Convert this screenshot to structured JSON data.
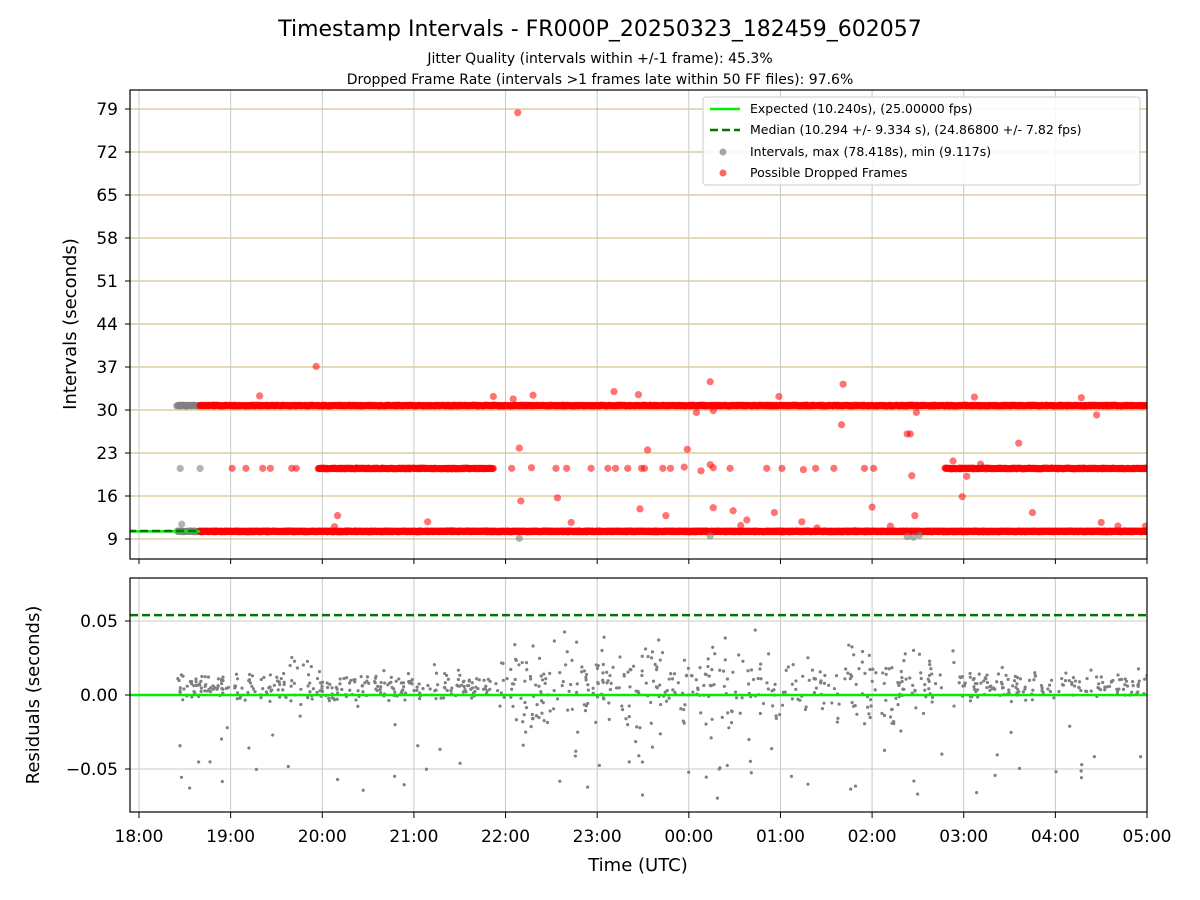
{
  "title": "Timestamp Intervals - FR000P_20250323_182459_602057",
  "subtitle_1": "Jitter Quality (intervals within +/-1 frame): 45.3%",
  "subtitle_2": "Dropped Frame Rate (intervals >1 frames late within 50 FF files): 97.6%",
  "colors": {
    "expected": "#00ee00",
    "median": "#007700",
    "intervals": "#808080",
    "dropped": "#ff0000",
    "grid_top": "#d4c48a",
    "grid": "#c8c8c8"
  },
  "chart_data": [
    {
      "type": "scatter",
      "ylabel": "Intervals (seconds)",
      "xlim": [
        "18:00",
        "05:00"
      ],
      "ylim": [
        5,
        82
      ],
      "yticks": [
        "9",
        "16",
        "23",
        "30",
        "37",
        "44",
        "51",
        "58",
        "65",
        "72",
        "79"
      ],
      "grid": true,
      "legend": "top-right",
      "lines": [
        {
          "name": "Expected (10.240s), (25.00000 fps)",
          "y": 10.24,
          "style": "solid",
          "x_range": [
            "17:55",
            "18:40"
          ]
        },
        {
          "name": "Median (10.294 +/- 9.334 s), (24.86800 +/- 7.82 fps)",
          "y": 10.294,
          "style": "dashed",
          "x_range": [
            "17:55",
            "18:40"
          ]
        }
      ],
      "series": [
        {
          "name": "Intervals, max (78.418s), min (9.117s)",
          "bands": [
            {
              "x_range": [
                "18:25",
                "18:40"
              ],
              "y": 10.24
            },
            {
              "x_range": [
                "18:25",
                "18:40"
              ],
              "y": 30.72
            },
            {
              "x_range": [
                "18:40",
                "05:00"
              ],
              "y": 10.24
            }
          ],
          "points": [
            [
              "18:27",
              20.48
            ],
            [
              "18:28",
              11.4
            ],
            [
              "18:40",
              20.48
            ],
            [
              "22:09",
              9.1
            ],
            [
              "02:23",
              9.4
            ],
            [
              "02:27",
              9.3
            ],
            [
              "02:31",
              9.6
            ],
            [
              "00:14",
              9.5
            ]
          ]
        },
        {
          "name": "Possible Dropped Frames",
          "bands": [
            {
              "x_range": [
                "18:40",
                "05:00"
              ],
              "y": 30.72
            },
            {
              "x_range": [
                "18:40",
                "05:00"
              ],
              "y": 10.24
            },
            {
              "x_range": [
                "19:57",
                "21:52"
              ],
              "y": 20.48
            },
            {
              "x_range": [
                "02:48",
                "05:00"
              ],
              "y": 20.48
            }
          ],
          "points": [
            [
              "22:08",
              78.4
            ],
            [
              "19:56",
              37.1
            ],
            [
              "01:41",
              34.2
            ],
            [
              "00:14",
              34.6
            ],
            [
              "23:11",
              33.0
            ],
            [
              "23:27",
              32.5
            ],
            [
              "19:19",
              32.3
            ],
            [
              "22:18",
              32.4
            ],
            [
              "21:52",
              32.2
            ],
            [
              "22:05",
              31.8
            ],
            [
              "03:07",
              32.1
            ],
            [
              "00:59",
              32.2
            ],
            [
              "04:17",
              32.0
            ],
            [
              "02:29",
              29.6
            ],
            [
              "04:27",
              29.2
            ],
            [
              "00:05",
              29.6
            ],
            [
              "00:16",
              29.9
            ],
            [
              "01:40",
              27.6
            ],
            [
              "02:23",
              26.1
            ],
            [
              "02:25",
              26.1
            ],
            [
              "03:36",
              24.6
            ],
            [
              "22:09",
              23.8
            ],
            [
              "23:33",
              23.5
            ],
            [
              "23:59",
              23.6
            ],
            [
              "19:01",
              20.5
            ],
            [
              "19:10",
              20.5
            ],
            [
              "19:21",
              20.5
            ],
            [
              "19:26",
              20.5
            ],
            [
              "19:40",
              20.5
            ],
            [
              "19:43",
              20.5
            ],
            [
              "22:04",
              20.5
            ],
            [
              "22:17",
              20.6
            ],
            [
              "22:33",
              20.5
            ],
            [
              "22:40",
              20.5
            ],
            [
              "22:56",
              20.5
            ],
            [
              "23:07",
              20.5
            ],
            [
              "23:12",
              20.5
            ],
            [
              "23:20",
              20.5
            ],
            [
              "23:29",
              20.5
            ],
            [
              "23:31",
              20.5
            ],
            [
              "23:43",
              20.5
            ],
            [
              "23:48",
              20.5
            ],
            [
              "23:57",
              20.7
            ],
            [
              "00:08",
              20.1
            ],
            [
              "00:14",
              21.1
            ],
            [
              "00:16",
              20.6
            ],
            [
              "00:27",
              20.5
            ],
            [
              "00:51",
              20.5
            ],
            [
              "01:01",
              20.5
            ],
            [
              "01:15",
              20.3
            ],
            [
              "01:23",
              20.5
            ],
            [
              "01:35",
              20.5
            ],
            [
              "01:55",
              20.5
            ],
            [
              "02:01",
              20.5
            ],
            [
              "02:26",
              19.3
            ],
            [
              "22:10",
              15.2
            ],
            [
              "22:34",
              15.7
            ],
            [
              "23:28",
              13.9
            ],
            [
              "23:45",
              12.8
            ],
            [
              "00:16",
              14.1
            ],
            [
              "00:29",
              13.6
            ],
            [
              "00:38",
              12.1
            ],
            [
              "00:56",
              13.3
            ],
            [
              "01:14",
              11.8
            ],
            [
              "02:00",
              14.2
            ],
            [
              "02:28",
              12.8
            ],
            [
              "02:59",
              15.9
            ],
            [
              "03:11",
              21.2
            ],
            [
              "03:17",
              20.5
            ],
            [
              "03:45",
              13.3
            ],
            [
              "02:53",
              21.7
            ],
            [
              "03:02",
              19.2
            ],
            [
              "04:30",
              11.7
            ],
            [
              "04:41",
              11.1
            ],
            [
              "04:59",
              11.1
            ],
            [
              "20:10",
              12.8
            ],
            [
              "20:08",
              11.0
            ],
            [
              "21:09",
              11.8
            ],
            [
              "22:43",
              11.7
            ],
            [
              "00:34",
              11.2
            ],
            [
              "02:12",
              11.1
            ],
            [
              "01:24",
              10.8
            ]
          ]
        }
      ]
    },
    {
      "type": "scatter",
      "ylabel": "Residuals (seconds)",
      "xlabel": "Time (UTC)",
      "xlim": [
        "18:00",
        "05:00"
      ],
      "xticks": [
        "18:00",
        "19:00",
        "20:00",
        "21:00",
        "22:00",
        "23:00",
        "00:00",
        "01:00",
        "02:00",
        "03:00",
        "04:00",
        "05:00"
      ],
      "ylim": [
        -0.08,
        0.08
      ],
      "yticks": [
        "−0.05",
        "0.00",
        "0.05"
      ],
      "grid": true,
      "lines": [
        {
          "name": "zero",
          "y": 0.0,
          "style": "solid"
        },
        {
          "name": "median",
          "y": 0.054,
          "style": "dashed"
        }
      ],
      "series": [
        {
          "name": "residuals",
          "x_range": [
            "18:25",
            "05:00"
          ],
          "spread": [
            -0.08,
            0.08
          ],
          "count": 900
        }
      ]
    }
  ],
  "legend": [
    {
      "label": "Expected (10.240s), (25.00000 fps)",
      "marker": "line-solid",
      "color": "#00ee00"
    },
    {
      "label": "Median (10.294 +/- 9.334 s), (24.86800 +/- 7.82 fps)",
      "marker": "line-dashed",
      "color": "#007700"
    },
    {
      "label": "Intervals, max (78.418s), min (9.117s)",
      "marker": "dot",
      "color": "#808080"
    },
    {
      "label": "Possible Dropped Frames",
      "marker": "dot",
      "color": "#ff0000"
    }
  ]
}
